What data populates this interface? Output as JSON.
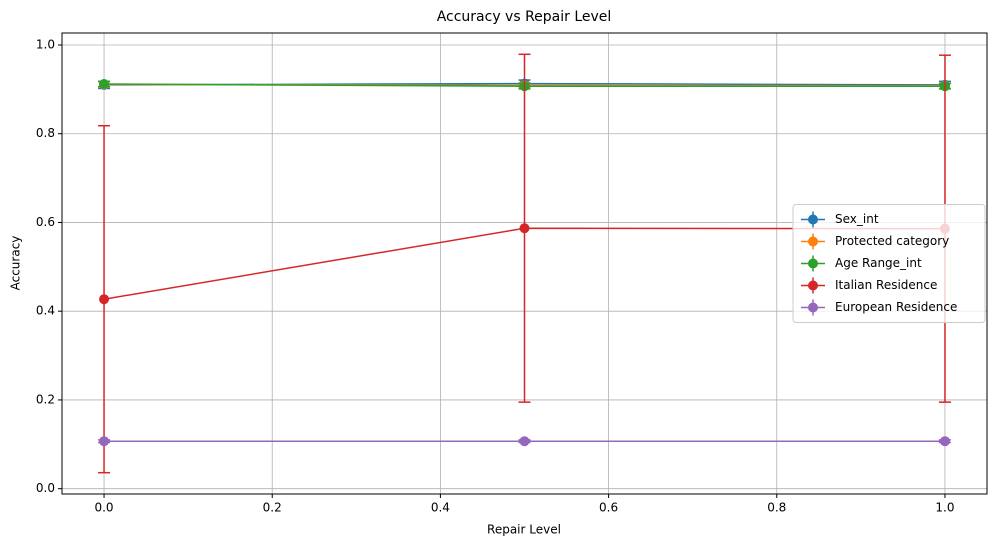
{
  "chart_data": {
    "type": "line",
    "title": "Accuracy vs Repair Level",
    "x_label": "Repair Level",
    "y_label": "Accuracy",
    "x": [
      0,
      0.5,
      1
    ],
    "series": [
      {
        "name": "Sex_int",
        "color": "#1f77b4",
        "values": [
          0.91,
          0.913,
          0.91
        ],
        "errors": [
          0.008,
          0.008,
          0.008
        ]
      },
      {
        "name": "Protected category",
        "color": "#ff7f0e",
        "values": [
          0.911,
          0.909,
          0.908
        ],
        "errors": [
          0.006,
          0.006,
          0.006
        ]
      },
      {
        "name": "Age Range_int",
        "color": "#2ca02c",
        "values": [
          0.912,
          0.907,
          0.907
        ],
        "errors": [
          0.006,
          0.006,
          0.006
        ]
      },
      {
        "name": "Italian Residence",
        "color": "#d62728",
        "values": [
          0.427,
          0.587,
          0.586
        ],
        "errors": [
          0.391,
          0.392,
          0.391
        ]
      },
      {
        "name": "European Residence",
        "color": "#9467bd",
        "values": [
          0.107,
          0.107,
          0.107
        ],
        "errors": [
          0.003,
          0.003,
          0.003
        ]
      }
    ],
    "xlim": [
      -0.05,
      1.05
    ],
    "ylim": [
      -0.012,
      1.027
    ],
    "xticks": [
      {
        "value": 0,
        "label": "0.0"
      },
      {
        "value": 0.2,
        "label": "0.2"
      },
      {
        "value": 0.4,
        "label": "0.4"
      },
      {
        "value": 0.6,
        "label": "0.6"
      },
      {
        "value": 0.8,
        "label": "0.8"
      },
      {
        "value": 1,
        "label": "1.0"
      }
    ],
    "yticks": [
      {
        "value": 0,
        "label": "0.0"
      },
      {
        "value": 0.2,
        "label": "0.2"
      },
      {
        "value": 0.4,
        "label": "0.4"
      },
      {
        "value": 0.6,
        "label": "0.6"
      },
      {
        "value": 0.8,
        "label": "0.8"
      },
      {
        "value": 1,
        "label": "1.0"
      }
    ],
    "grid": true,
    "legend": "center right"
  }
}
